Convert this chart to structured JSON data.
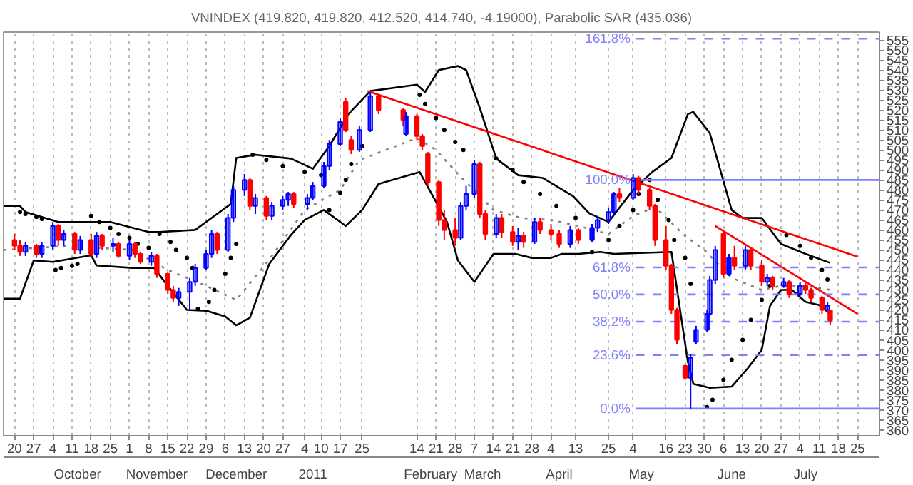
{
  "chart_data": {
    "type": "candlestick",
    "title": "VNINDEX (419.820, 419.820, 412.520, 414.740, -4.19000), Parabolic SAR (435.036)",
    "colors": [
      "#ff0000",
      "#ff0000",
      "#0000ff",
      "#ff0000",
      "#0000ff",
      "#0000ff",
      "#ff0000",
      "#0000ff",
      "#ff0000",
      "#0000ff",
      "#ff0000",
      "#0000ff",
      "#ff0000",
      "#0000ff",
      "#ff0000",
      "#0000ff",
      "#ff0000",
      "#ff0000",
      "#0000ff",
      "#ff0000",
      "#ff0000",
      "#ff0000",
      "#0000ff",
      "#0000ff",
      "#0000ff",
      "#0000ff",
      "#0000ff",
      "#ff0000",
      "#0000ff",
      "#0000ff",
      "#0000ff",
      "#ff0000",
      "#0000ff",
      "#ff0000",
      "#0000ff",
      "#0000ff",
      "#0000ff",
      "#ff0000",
      "#0000ff",
      "#0000ff",
      "#0000ff",
      "#0000ff",
      "#0000ff",
      "#ff0000",
      "#ff0000",
      "#0000ff",
      "#0000ff",
      "#ff0000",
      "#ff0000",
      "#0000ff",
      "#ff0000",
      "#ff0000",
      "#ff0000",
      "#ff0000",
      "#ff0000",
      "#ff0000",
      "#0000ff",
      "#0000ff",
      "#0000ff",
      "#ff0000",
      "#ff0000",
      "#0000ff",
      "#ff0000",
      "#ff0000",
      "#0000ff",
      "#ff0000",
      "#0000ff",
      "#ff0000",
      "#ff0000",
      "#ff0000",
      "#0000ff",
      "#ff0000",
      "#0000ff",
      "#0000ff",
      "#0000ff",
      "#0000ff",
      "#ff0000",
      "#0000ff",
      "#ff0000",
      "#ff0000",
      "#ff0000",
      "#ff0000",
      "#ff0000",
      "#ff0000",
      "#ff0000",
      "#0000ff",
      "#0000ff",
      "#0000ff",
      "#0000ff",
      "#0000ff",
      "#ff0000",
      "#0000ff",
      "#ff0000",
      "#0000ff",
      "#ff0000",
      "#ff0000",
      "#0000ff",
      "#ff0000",
      "#0000ff",
      "#ff0000",
      "#0000ff",
      "#ff0000",
      "#ff0000",
      "#ff0000",
      "#0000ff",
      "#ff0000"
    ],
    "x": [
      "2010-09-20",
      "2010-09-22",
      "2010-09-24",
      "2010-09-28",
      "2010-09-30",
      "2010-10-04",
      "2010-10-06",
      "2010-10-08",
      "2010-10-12",
      "2010-10-14",
      "2010-10-18",
      "2010-10-20",
      "2010-10-22",
      "2010-10-26",
      "2010-10-28",
      "2010-11-01",
      "2010-11-03",
      "2010-11-05",
      "2010-11-09",
      "2010-11-11",
      "2010-11-15",
      "2010-11-17",
      "2010-11-19",
      "2010-11-23",
      "2010-11-25",
      "2010-11-29",
      "2010-12-01",
      "2010-12-03",
      "2010-12-07",
      "2010-12-09",
      "2010-12-13",
      "2010-12-15",
      "2010-12-17",
      "2010-12-21",
      "2010-12-23",
      "2010-12-27",
      "2010-12-29",
      "2010-12-31",
      "2011-01-05",
      "2011-01-07",
      "2011-01-11",
      "2011-01-13",
      "2011-01-17",
      "2011-01-19",
      "2011-01-21",
      "2011-01-24",
      "2011-01-28",
      "2011-01-31",
      "2011-02-09",
      "2011-02-10",
      "2011-02-14",
      "2011-02-16",
      "2011-02-18",
      "2011-02-22",
      "2011-02-24",
      "2011-02-28",
      "2011-03-02",
      "2011-03-04",
      "2011-03-07",
      "2011-03-09",
      "2011-03-11",
      "2011-03-15",
      "2011-03-17",
      "2011-03-21",
      "2011-03-23",
      "2011-03-25",
      "2011-03-29",
      "2011-03-31",
      "2011-04-04",
      "2011-04-07",
      "2011-04-11",
      "2011-04-14",
      "2011-04-19",
      "2011-04-21",
      "2011-04-25",
      "2011-04-27",
      "2011-04-29",
      "2011-05-04",
      "2011-05-06",
      "2011-05-10",
      "2011-05-12",
      "2011-05-16",
      "2011-05-18",
      "2011-05-20",
      "2011-05-23",
      "2011-05-25",
      "2011-05-27",
      "2011-05-31",
      "2011-06-01",
      "2011-06-03",
      "2011-06-06",
      "2011-06-08",
      "2011-06-10",
      "2011-06-14",
      "2011-06-16",
      "2011-06-20",
      "2011-06-22",
      "2011-06-24",
      "2011-06-28",
      "2011-06-30",
      "2011-07-04",
      "2011-07-06",
      "2011-07-08",
      "2011-07-12",
      "2011-07-14",
      "2011-07-15"
    ],
    "ohlc": [
      [
        455,
        458,
        450,
        452
      ],
      [
        452,
        455,
        447,
        449
      ],
      [
        449,
        454,
        447,
        452
      ],
      [
        452,
        453,
        446,
        448
      ],
      [
        448,
        454,
        446,
        452
      ],
      [
        452,
        464,
        450,
        462
      ],
      [
        462,
        463,
        452,
        455
      ],
      [
        455,
        460,
        452,
        458
      ],
      [
        458,
        459,
        448,
        450
      ],
      [
        450,
        457,
        448,
        455
      ],
      [
        455,
        458,
        446,
        448
      ],
      [
        448,
        459,
        446,
        457
      ],
      [
        457,
        458,
        450,
        452
      ],
      [
        452,
        456,
        449,
        453
      ],
      [
        453,
        454,
        446,
        447
      ],
      [
        447,
        455,
        445,
        453
      ],
      [
        453,
        454,
        446,
        448
      ],
      [
        448,
        449,
        443,
        444
      ],
      [
        444,
        449,
        442,
        447
      ],
      [
        447,
        448,
        436,
        438
      ],
      [
        438,
        439,
        428,
        430
      ],
      [
        430,
        432,
        424,
        426
      ],
      [
        426,
        431,
        422,
        429
      ],
      [
        429,
        436,
        420,
        434
      ],
      [
        434,
        443,
        432,
        441
      ],
      [
        441,
        450,
        440,
        448
      ],
      [
        448,
        460,
        446,
        458
      ],
      [
        458,
        459,
        448,
        450
      ],
      [
        450,
        468,
        449,
        466
      ],
      [
        466,
        482,
        464,
        480
      ],
      [
        480,
        488,
        477,
        485
      ],
      [
        485,
        486,
        470,
        472
      ],
      [
        472,
        478,
        468,
        476
      ],
      [
        476,
        477,
        465,
        467
      ],
      [
        467,
        474,
        465,
        472
      ],
      [
        472,
        477,
        470,
        475
      ],
      [
        475,
        479,
        472,
        478
      ],
      [
        478,
        479,
        471,
        473
      ],
      [
        473,
        478,
        470,
        476
      ],
      [
        476,
        484,
        475,
        482
      ],
      [
        482,
        494,
        481,
        492
      ],
      [
        492,
        505,
        490,
        503
      ],
      [
        503,
        516,
        502,
        514
      ],
      [
        524,
        526,
        509,
        510
      ],
      [
        505,
        507,
        498,
        500
      ],
      [
        500,
        512,
        499,
        510
      ],
      [
        510,
        529,
        509,
        527
      ],
      [
        527,
        528,
        518,
        520
      ],
      [
        520,
        521,
        512,
        515
      ],
      [
        508,
        519,
        507,
        517
      ],
      [
        517,
        518,
        505,
        507
      ],
      [
        507,
        508,
        500,
        502
      ],
      [
        498,
        499,
        482,
        484
      ],
      [
        484,
        485,
        462,
        465
      ],
      [
        465,
        470,
        455,
        460
      ],
      [
        460,
        466,
        452,
        456
      ],
      [
        456,
        474,
        455,
        472
      ],
      [
        472,
        482,
        470,
        478
      ],
      [
        478,
        495,
        476,
        493
      ],
      [
        493,
        494,
        466,
        468
      ],
      [
        468,
        470,
        455,
        458
      ],
      [
        458,
        468,
        456,
        466
      ],
      [
        466,
        468,
        456,
        459
      ],
      [
        459,
        462,
        452,
        454
      ],
      [
        454,
        461,
        450,
        457
      ],
      [
        457,
        459,
        451,
        454
      ],
      [
        454,
        466,
        453,
        464
      ],
      [
        464,
        466,
        458,
        460
      ],
      [
        460,
        463,
        455,
        458
      ],
      [
        458,
        460,
        451,
        453
      ],
      [
        453,
        462,
        451,
        460
      ],
      [
        460,
        461,
        453,
        455
      ],
      [
        455,
        463,
        454,
        461
      ],
      [
        461,
        467,
        459,
        465
      ],
      [
        465,
        471,
        463,
        469
      ],
      [
        469,
        479,
        468,
        478
      ],
      [
        478,
        481,
        474,
        476
      ],
      [
        476,
        488,
        475,
        486
      ],
      [
        486,
        487,
        478,
        480
      ],
      [
        480,
        481,
        470,
        472
      ],
      [
        472,
        473,
        452,
        455
      ],
      [
        455,
        462,
        440,
        442
      ],
      [
        442,
        443,
        418,
        420
      ],
      [
        420,
        421,
        403,
        405
      ],
      [
        392,
        393,
        385,
        386
      ],
      [
        386,
        398,
        370.6,
        396
      ],
      [
        404,
        412,
        403,
        410
      ],
      [
        410,
        420,
        409,
        418
      ],
      [
        418,
        437,
        417,
        435
      ],
      [
        435,
        452,
        433,
        450
      ],
      [
        458,
        459,
        436,
        438
      ],
      [
        438,
        448,
        437,
        446
      ],
      [
        446,
        452,
        440,
        442
      ],
      [
        442,
        452,
        440,
        450
      ],
      [
        450,
        451,
        440,
        442
      ],
      [
        442,
        445,
        432,
        434
      ],
      [
        434,
        438,
        432,
        436
      ],
      [
        436,
        437,
        430,
        432
      ],
      [
        432,
        436,
        431,
        434
      ],
      [
        434,
        435,
        426,
        428
      ],
      [
        428,
        434,
        427,
        432
      ],
      [
        432,
        434,
        428,
        430
      ],
      [
        430,
        431,
        424,
        426
      ],
      [
        426,
        427,
        418,
        420
      ],
      [
        420,
        424,
        419,
        422
      ],
      [
        419.82,
        419.82,
        412.52,
        414.74
      ]
    ],
    "series": [
      {
        "type": "line",
        "color": "#000000",
        "x": [
          "2010-09-16",
          "2010-09-22",
          "2010-09-24",
          "2010-10-06",
          "2010-10-25",
          "2010-11-08",
          "2010-11-12",
          "2010-11-25",
          "2010-12-02",
          "2010-12-08",
          "2010-12-10",
          "2010-12-17",
          "2010-12-30",
          "2011-01-07",
          "2011-01-13",
          "2011-01-20",
          "2011-01-28",
          "2011-02-14",
          "2011-02-17",
          "2011-02-22",
          "2011-03-01",
          "2011-03-04",
          "2011-03-09",
          "2011-03-15",
          "2011-03-23",
          "2011-04-01",
          "2011-04-12",
          "2011-04-18",
          "2011-04-25",
          "2011-05-04",
          "2011-05-11",
          "2011-05-18",
          "2011-05-24",
          "2011-05-26",
          "2011-06-01",
          "2011-06-09",
          "2011-06-13",
          "2011-06-20",
          "2011-06-27",
          "2011-07-06",
          "2011-07-15"
        ],
        "values": [
          472,
          472,
          469,
          464,
          464,
          459,
          459,
          460,
          467,
          473,
          496,
          497.6,
          495.7,
          490.6,
          502,
          518,
          529.5,
          532.7,
          529,
          540,
          542,
          540,
          521,
          495.7,
          487.4,
          486,
          477,
          468.3,
          464,
          480,
          489,
          496,
          518,
          519,
          508.5,
          470,
          466,
          466,
          453,
          448,
          443.5
        ]
      },
      {
        "type": "line",
        "color": "#000000",
        "x": [
          "2010-09-16",
          "2010-09-22",
          "2010-09-27",
          "2010-10-04",
          "2010-10-18",
          "2010-10-20",
          "2010-11-02",
          "2010-11-10",
          "2010-11-15",
          "2010-11-22",
          "2010-11-29",
          "2010-12-06",
          "2010-12-10",
          "2010-12-15",
          "2010-12-22",
          "2010-12-30",
          "2011-01-04",
          "2011-01-11",
          "2011-01-19",
          "2011-01-25",
          "2011-01-31",
          "2011-02-15",
          "2011-02-25",
          "2011-03-01",
          "2011-03-07",
          "2011-03-14",
          "2011-03-22",
          "2011-03-28",
          "2011-04-04",
          "2011-04-08",
          "2011-04-14",
          "2011-04-22",
          "2011-04-27",
          "2011-05-18",
          "2011-05-24",
          "2011-05-26",
          "2011-06-01",
          "2011-06-09",
          "2011-06-15",
          "2011-06-20",
          "2011-06-23",
          "2011-06-27",
          "2011-07-01",
          "2011-07-06",
          "2011-07-11",
          "2011-07-15"
        ],
        "values": [
          425.6,
          425.6,
          444.7,
          444,
          447.3,
          442.2,
          441,
          441,
          432,
          420,
          419.6,
          416.7,
          412.3,
          416.1,
          442.8,
          457.5,
          465,
          470,
          462,
          470,
          483,
          489,
          464,
          444.7,
          434,
          448,
          448,
          446,
          446,
          448,
          448,
          449,
          448,
          449,
          394,
          383,
          381,
          381.6,
          391,
          400,
          422,
          430,
          430,
          424,
          422.4,
          418
        ]
      },
      {
        "type": "line",
        "color": "#808080",
        "line_style": "dotted",
        "x": [
          "2010-09-16",
          "2010-10-10",
          "2010-11-02",
          "2010-11-15",
          "2010-11-29",
          "2010-12-10",
          "2010-12-22",
          "2011-01-04",
          "2011-01-17",
          "2011-01-24",
          "2011-02-14",
          "2011-02-21",
          "2011-03-01",
          "2011-03-14",
          "2011-03-24",
          "2011-04-04",
          "2011-04-14",
          "2011-04-25",
          "2011-05-04",
          "2011-05-12",
          "2011-05-23",
          "2011-05-30",
          "2011-06-09",
          "2011-06-20",
          "2011-06-27",
          "2011-07-06",
          "2011-07-15"
        ],
        "values": [
          450,
          452,
          450,
          440,
          432,
          425,
          445,
          470,
          480,
          495,
          506,
          500,
          488,
          470,
          466,
          465,
          462,
          458,
          467,
          471.5,
          457,
          450,
          436,
          430,
          432,
          432,
          430
        ]
      },
      {
        "type": "scatter",
        "color": "#000000",
        "marker": "circle",
        "x": [
          "2010-09-22",
          "2010-09-24",
          "2010-09-28",
          "2010-09-30",
          "2010-10-05",
          "2010-10-07",
          "2010-10-11",
          "2010-10-13",
          "2010-10-18",
          "2010-10-21",
          "2010-10-25",
          "2010-10-28",
          "2010-11-01",
          "2010-11-04",
          "2010-11-08",
          "2010-11-12",
          "2010-11-16",
          "2010-11-18",
          "2010-11-22",
          "2010-11-24",
          "2010-11-26",
          "2010-11-30",
          "2010-12-02",
          "2010-12-06",
          "2010-12-08",
          "2010-12-10",
          "2010-12-16",
          "2010-12-21",
          "2010-12-27",
          "2011-01-04",
          "2011-01-10",
          "2011-01-13",
          "2011-01-17",
          "2011-01-19",
          "2011-01-21",
          "2011-01-25",
          "2011-02-15",
          "2011-02-17",
          "2011-02-21",
          "2011-02-24",
          "2011-02-28",
          "2011-03-03",
          "2011-03-15",
          "2011-03-21",
          "2011-03-25",
          "2011-03-31",
          "2011-04-06",
          "2011-04-13",
          "2011-04-19",
          "2011-04-25",
          "2011-04-29",
          "2011-05-04",
          "2011-05-06",
          "2011-05-10",
          "2011-05-13",
          "2011-05-17",
          "2011-05-19",
          "2011-05-23",
          "2011-05-25",
          "2011-05-31",
          "2011-06-02",
          "2011-06-06",
          "2011-06-09",
          "2011-06-13",
          "2011-06-16",
          "2011-06-20",
          "2011-06-23",
          "2011-06-29",
          "2011-07-04",
          "2011-07-08",
          "2011-07-12",
          "2011-07-14"
        ],
        "values": [
          469,
          468,
          466.5,
          465.5,
          440,
          441,
          442,
          443,
          467,
          464,
          461,
          458,
          456,
          453,
          451,
          458,
          454,
          450,
          446,
          441,
          420.5,
          424,
          430,
          438,
          446,
          453,
          497.6,
          495,
          492,
          489,
          487.4,
          470,
          478.5,
          485,
          493,
          502,
          527.6,
          523,
          516,
          510,
          504,
          500,
          495.7,
          490,
          484,
          478,
          472,
          466,
          449,
          455,
          462,
          470,
          478,
          485,
          475,
          465,
          455,
          446,
          433,
          371.4,
          375,
          385,
          395,
          405,
          415,
          425,
          432,
          457.5,
          452,
          446,
          440,
          435.2
        ]
      },
      {
        "type": "line",
        "color": "#ff0000",
        "x": [
          "2011-01-27",
          "2011-07-25"
        ],
        "values": [
          529.5,
          446.6
        ]
      },
      {
        "type": "line",
        "color": "#ff0000",
        "x": [
          "2011-06-03",
          "2011-07-25"
        ],
        "values": [
          462,
          418
        ]
      },
      {
        "type": "line",
        "name": "161.8%",
        "color": "#8080ff",
        "line_style": "dashed",
        "x": [
          "2011-05-05",
          "2011-08-02"
        ],
        "values": [
          555.7,
          555.7
        ]
      },
      {
        "type": "line",
        "name": "100.0%",
        "color": "#8080ff",
        "line_style": "solid",
        "x": [
          "2011-05-05",
          "2011-08-02"
        ],
        "values": [
          485,
          485
        ]
      },
      {
        "type": "line",
        "name": "61.8%",
        "color": "#8080ff",
        "line_style": "dashed",
        "x": [
          "2011-05-05",
          "2011-08-02"
        ],
        "values": [
          441.2,
          441.2
        ]
      },
      {
        "type": "line",
        "name": "50.0%",
        "color": "#8080ff",
        "line_style": "dashed",
        "x": [
          "2011-05-05",
          "2011-08-02"
        ],
        "values": [
          427.7,
          427.7
        ]
      },
      {
        "type": "line",
        "name": "38.2%",
        "color": "#8080ff",
        "line_style": "dashed",
        "x": [
          "2011-05-05",
          "2011-08-02"
        ],
        "values": [
          414.1,
          414.1
        ]
      },
      {
        "type": "line",
        "name": "23.6%",
        "color": "#8080ff",
        "line_style": "dashed",
        "x": [
          "2011-05-05",
          "2011-08-02"
        ],
        "values": [
          397.4,
          397.4
        ]
      },
      {
        "type": "line",
        "name": "0.0%",
        "color": "#8080ff",
        "line_style": "solid",
        "x": [
          "2011-05-05",
          "2011-08-02"
        ],
        "values": [
          370.6,
          370.6
        ]
      }
    ],
    "xlim": [
      "2010-09-16",
      "2011-08-02"
    ],
    "xticks": [
      {
        "value": "2010-09-20",
        "label": "20"
      },
      {
        "value": "2010-09-27",
        "label": "27"
      },
      {
        "value": "2010-10-04",
        "label": "4"
      },
      {
        "value": "2010-10-11",
        "label": "11"
      },
      {
        "value": "2010-10-18",
        "label": "18"
      },
      {
        "value": "2010-10-25",
        "label": "25"
      },
      {
        "value": "2010-11-01",
        "label": "1"
      },
      {
        "value": "2010-11-08",
        "label": "8"
      },
      {
        "value": "2010-11-15",
        "label": "15"
      },
      {
        "value": "2010-11-22",
        "label": "22"
      },
      {
        "value": "2010-11-29",
        "label": "29"
      },
      {
        "value": "2010-12-06",
        "label": "6"
      },
      {
        "value": "2010-12-13",
        "label": "13"
      },
      {
        "value": "2010-12-20",
        "label": "20"
      },
      {
        "value": "2010-12-27",
        "label": "27"
      },
      {
        "value": "2011-01-04",
        "label": "4"
      },
      {
        "value": "2011-01-10",
        "label": "10"
      },
      {
        "value": "2011-01-17",
        "label": "17"
      },
      {
        "value": "2011-01-25",
        "label": "25"
      },
      {
        "value": "2011-02-14",
        "label": "14"
      },
      {
        "value": "2011-02-21",
        "label": "21"
      },
      {
        "value": "2011-02-28",
        "label": "28"
      },
      {
        "value": "2011-03-07",
        "label": "7"
      },
      {
        "value": "2011-03-14",
        "label": "14"
      },
      {
        "value": "2011-03-21",
        "label": "21"
      },
      {
        "value": "2011-03-28",
        "label": "28"
      },
      {
        "value": "2011-04-04",
        "label": "4"
      },
      {
        "value": "2011-04-13",
        "label": "13"
      },
      {
        "value": "2011-04-25",
        "label": "25"
      },
      {
        "value": "2011-05-04",
        "label": "4"
      },
      {
        "value": "2011-05-16",
        "label": "16"
      },
      {
        "value": "2011-05-23",
        "label": "23"
      },
      {
        "value": "2011-05-30",
        "label": "30"
      },
      {
        "value": "2011-06-06",
        "label": "6"
      },
      {
        "value": "2011-06-13",
        "label": "13"
      },
      {
        "value": "2011-06-20",
        "label": "20"
      },
      {
        "value": "2011-06-27",
        "label": "27"
      },
      {
        "value": "2011-07-04",
        "label": "4"
      },
      {
        "value": "2011-07-11",
        "label": "11"
      },
      {
        "value": "2011-07-18",
        "label": "18"
      },
      {
        "value": "2011-07-25",
        "label": "25"
      }
    ],
    "x2lim": [
      "2010-09-16",
      "2011-08-02"
    ],
    "x2ticks": [
      {
        "value": "2010-10-13",
        "label": "October"
      },
      {
        "value": "2010-11-11",
        "label": "November"
      },
      {
        "value": "2010-12-10",
        "label": "December"
      },
      {
        "value": "2011-01-07",
        "label": "2011"
      },
      {
        "value": "2011-02-19",
        "label": "February"
      },
      {
        "value": "2011-03-10",
        "label": "March"
      },
      {
        "value": "2011-04-07",
        "label": "April"
      },
      {
        "value": "2011-05-07",
        "label": "May"
      },
      {
        "value": "2011-06-09",
        "label": "June"
      },
      {
        "value": "2011-07-06",
        "label": "July"
      }
    ],
    "ylim": [
      357,
      559
    ],
    "yticks": [
      360,
      365,
      370,
      375,
      380,
      385,
      390,
      395,
      400,
      405,
      410,
      415,
      420,
      425,
      430,
      435,
      440,
      445,
      450,
      455,
      460,
      465,
      470,
      475,
      480,
      485,
      490,
      495,
      500,
      505,
      510,
      515,
      520,
      525,
      530,
      535,
      540,
      545,
      550,
      555
    ],
    "grid": "x"
  }
}
